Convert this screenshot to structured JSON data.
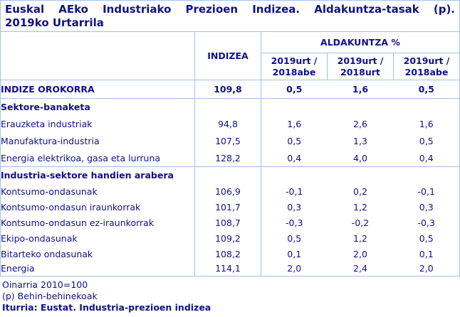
{
  "title": {
    "line1": "Euskal AEko Industriako Prezioen Indizea. Aldakuntza-tasak (p).",
    "line2": "2019ko Urtarrila"
  },
  "table": {
    "headers": {
      "indizea": "INDIZEA",
      "aldakuntza_group": "ALDAKUNTZA %",
      "sub": [
        "2019urt / 2018abe",
        "2019urt / 2018urt",
        "2019urt / 2018abe"
      ]
    },
    "rows": [
      {
        "type": "total",
        "indent": 0,
        "label": "INDIZE OROKORRA",
        "values": [
          "109,8",
          "0,5",
          "1,6",
          "0,5"
        ]
      },
      {
        "type": "section",
        "indent": 0,
        "label": "Sektore-banaketa"
      },
      {
        "type": "data",
        "indent": 1,
        "label": "Erauzketa industriak",
        "values": [
          "94,8",
          "1,6",
          "2,6",
          "1,6"
        ]
      },
      {
        "type": "data",
        "indent": 1,
        "label": "Manufaktura-industria",
        "values": [
          "107,5",
          "0,5",
          "1,3",
          "0,5"
        ]
      },
      {
        "type": "data",
        "indent": 1,
        "label": "Energia elektrikoa, gasa eta lurruna",
        "values": [
          "128,2",
          "0,4",
          "4,0",
          "0,4"
        ]
      },
      {
        "type": "section",
        "indent": 0,
        "label": "Industria-sektore handien arabera"
      },
      {
        "type": "data",
        "indent": 1,
        "label": "Kontsumo-ondasunak",
        "values": [
          "106,9",
          "-0,1",
          "0,2",
          "-0,1"
        ]
      },
      {
        "type": "data",
        "indent": 2,
        "label": "Kontsumo-ondasun iraunkorrak",
        "values": [
          "101,7",
          "0,3",
          "1,2",
          "0,3"
        ]
      },
      {
        "type": "data",
        "indent": 2,
        "label": "Kontsumo-ondasun ez-iraunkorrak",
        "values": [
          "108,7",
          "-0,3",
          "-0,2",
          "-0,3"
        ]
      },
      {
        "type": "data",
        "indent": 1,
        "label": "Ekipo-ondasunak",
        "values": [
          "109,2",
          "0,5",
          "1,2",
          "0,5"
        ]
      },
      {
        "type": "data",
        "indent": 1,
        "label": "Bitarteko ondasunak",
        "values": [
          "108,2",
          "0,1",
          "2,0",
          "0,1"
        ]
      },
      {
        "type": "data",
        "indent": 1,
        "label": "Energia",
        "values": [
          "114,1",
          "2,0",
          "2,4",
          "2,0"
        ]
      }
    ]
  },
  "footer": {
    "note1": "Oinarria 2010=100",
    "note2": "(p) Behin-behinekoak",
    "source": "Iturria: Eustat. Industria-prezioen indizea"
  },
  "colors": {
    "text_navy": "#10108a",
    "border_blue": "#9dc3e6",
    "background": "#ffffff"
  }
}
